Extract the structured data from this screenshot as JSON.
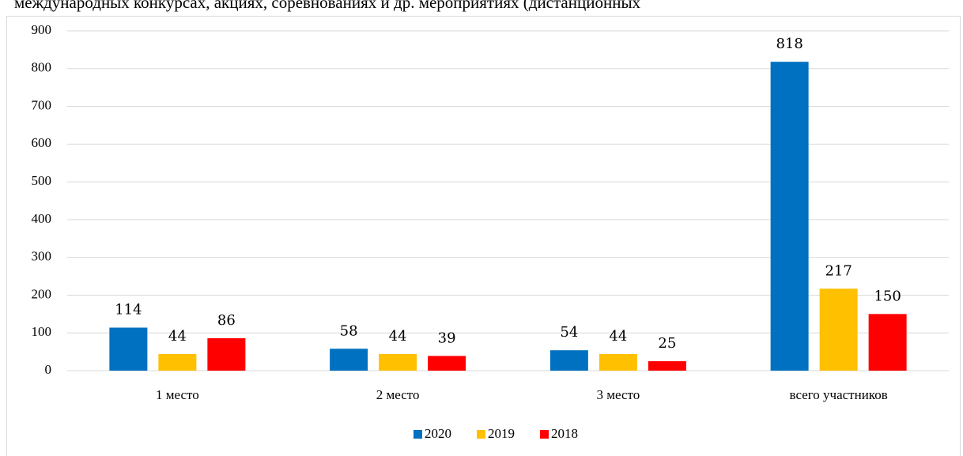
{
  "chart_data": {
    "type": "bar",
    "title": "международных конкурсах, акциях, соревнованиях и др. мероприятиях (дистанционных",
    "categories": [
      "1 место",
      "2 место",
      "3 место",
      "всего участников"
    ],
    "series": [
      {
        "name": "2020",
        "color": "#0070c0",
        "values": [
          114,
          58,
          54,
          818
        ]
      },
      {
        "name": "2019",
        "color": "#ffc000",
        "values": [
          44,
          44,
          44,
          217
        ]
      },
      {
        "name": "2018",
        "color": "#ff0000",
        "values": [
          86,
          39,
          25,
          150
        ]
      }
    ],
    "ylim": [
      0,
      900
    ],
    "yticks": [
      0,
      100,
      200,
      300,
      400,
      500,
      600,
      700,
      800,
      900
    ],
    "grid": true,
    "legend": "bottom"
  }
}
